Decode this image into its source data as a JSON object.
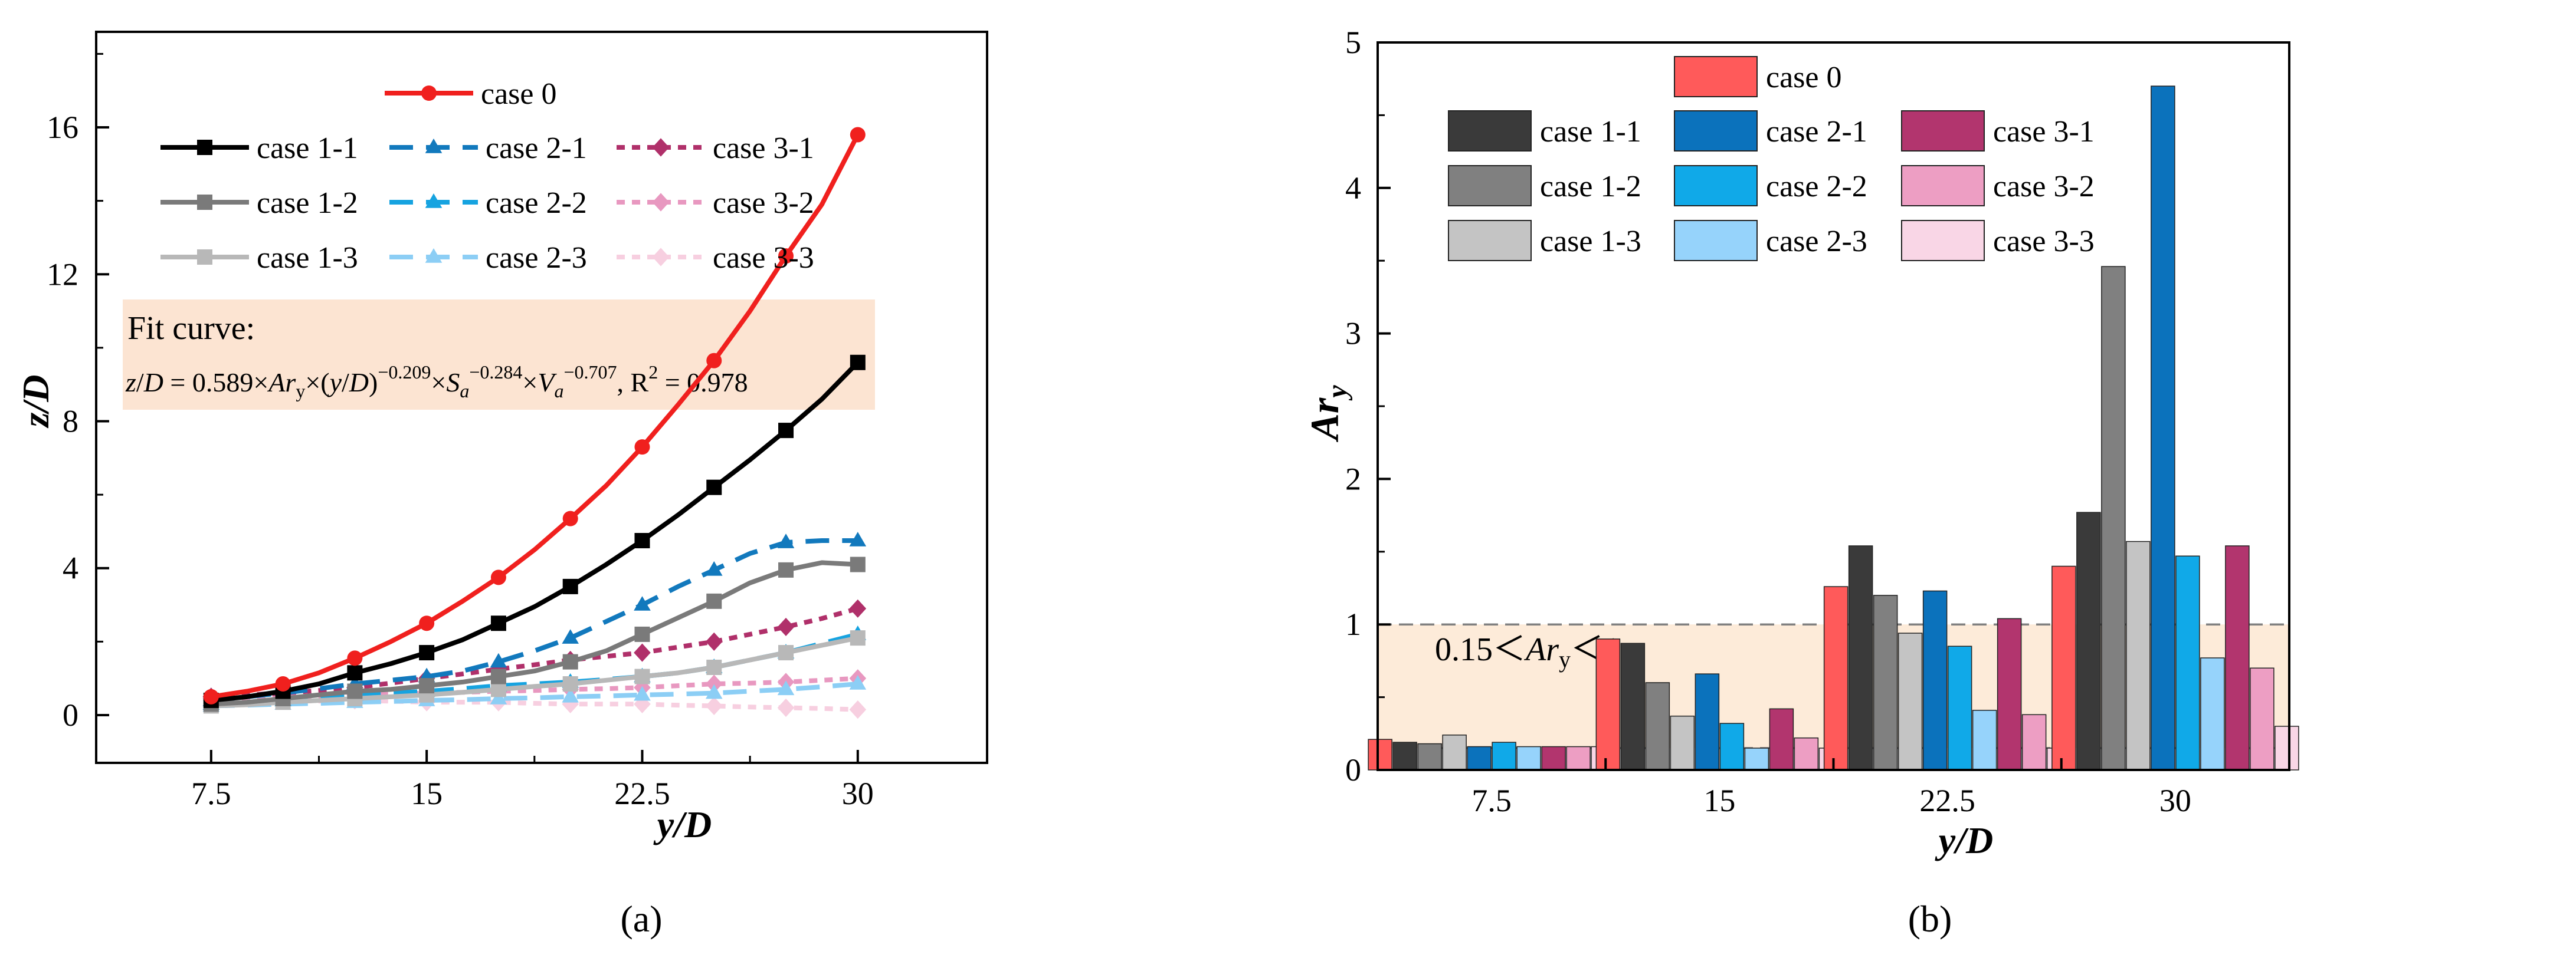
{
  "figure": {
    "panels": [
      "(a)",
      "(b)"
    ]
  },
  "chart_data": [
    {
      "type": "line",
      "panel_label": "(a)",
      "xlabel": "y/D",
      "ylabel": "z/D",
      "xlim": [
        3.5,
        34.5
      ],
      "ylim": [
        -1.3,
        18.6
      ],
      "xticks": [
        7.5,
        15,
        22.5,
        30
      ],
      "xtick_labels": [
        "7.5",
        "15",
        "22.5",
        "30"
      ],
      "yticks": [
        0,
        4,
        8,
        12,
        16
      ],
      "ytick_labels": [
        "0",
        "4",
        "8",
        "12",
        "16"
      ],
      "grid": false,
      "legend_position": "top",
      "annotation": {
        "title": "Fit curve:",
        "formula": "z/D = 0.589×Ary×(y/D)−0.209×Sa−0.284×Va−0.707, R2 = 0.978",
        "background": "#fce4d2"
      },
      "series": [
        {
          "name": "case 0",
          "color": "#f0201e",
          "dash": "solid",
          "marker": "circle",
          "marker_x": [
            7.5,
            10,
            12.5,
            15,
            17.5,
            20,
            22.5,
            25,
            27.5,
            30
          ],
          "marker_y": [
            0.5,
            0.85,
            1.55,
            2.5,
            3.75,
            5.35,
            7.3,
            9.65,
            12.5,
            15.8
          ],
          "x": [
            7.5,
            8.75,
            10,
            11.25,
            12.5,
            13.75,
            15,
            16.25,
            17.5,
            18.75,
            20,
            21.25,
            22.5,
            23.75,
            25,
            26.25,
            27.5,
            28.75,
            30
          ],
          "y": [
            0.5,
            0.65,
            0.85,
            1.15,
            1.55,
            2.0,
            2.5,
            3.1,
            3.75,
            4.5,
            5.35,
            6.25,
            7.3,
            8.45,
            9.65,
            11.0,
            12.5,
            13.9,
            15.8
          ]
        },
        {
          "name": "case 1-1",
          "color": "#000000",
          "dash": "solid",
          "marker": "square",
          "marker_x": [
            7.5,
            10,
            12.5,
            15,
            17.5,
            20,
            22.5,
            25,
            27.5,
            30
          ],
          "marker_y": [
            0.4,
            0.65,
            1.15,
            1.7,
            2.5,
            3.5,
            4.75,
            6.2,
            7.75,
            9.6
          ],
          "x": [
            7.5,
            8.75,
            10,
            11.25,
            12.5,
            13.75,
            15,
            16.25,
            17.5,
            18.75,
            20,
            21.25,
            22.5,
            23.75,
            25,
            26.25,
            27.5,
            28.75,
            30
          ],
          "y": [
            0.4,
            0.5,
            0.65,
            0.85,
            1.15,
            1.4,
            1.7,
            2.05,
            2.5,
            2.95,
            3.5,
            4.1,
            4.75,
            5.45,
            6.2,
            6.95,
            7.75,
            8.6,
            9.6
          ]
        },
        {
          "name": "case 1-2",
          "color": "#7a7a7a",
          "dash": "solid",
          "marker": "square",
          "marker_x": [
            7.5,
            10,
            12.5,
            15,
            17.5,
            20,
            22.5,
            25,
            27.5,
            30
          ],
          "marker_y": [
            0.3,
            0.45,
            0.65,
            0.8,
            1.05,
            1.45,
            2.2,
            3.1,
            3.95,
            4.1
          ],
          "x": [
            7.5,
            8.75,
            10,
            11.25,
            12.5,
            13.75,
            15,
            16.25,
            17.5,
            18.75,
            20,
            21.25,
            22.5,
            23.75,
            25,
            26.25,
            27.5,
            28.75,
            30
          ],
          "y": [
            0.3,
            0.35,
            0.45,
            0.55,
            0.65,
            0.7,
            0.8,
            0.9,
            1.05,
            1.2,
            1.45,
            1.75,
            2.2,
            2.65,
            3.1,
            3.6,
            3.95,
            4.15,
            4.1
          ]
        },
        {
          "name": "case 1-3",
          "color": "#b8b8b8",
          "dash": "solid",
          "marker": "square",
          "marker_x": [
            7.5,
            10,
            12.5,
            15,
            17.5,
            20,
            22.5,
            25,
            27.5,
            30
          ],
          "marker_y": [
            0.25,
            0.35,
            0.45,
            0.55,
            0.7,
            0.85,
            1.05,
            1.3,
            1.7,
            2.1
          ],
          "x": [
            7.5,
            8.75,
            10,
            11.25,
            12.5,
            13.75,
            15,
            16.25,
            17.5,
            18.75,
            20,
            21.25,
            22.5,
            23.75,
            25,
            26.25,
            27.5,
            28.75,
            30
          ],
          "y": [
            0.25,
            0.28,
            0.35,
            0.4,
            0.45,
            0.5,
            0.55,
            0.62,
            0.7,
            0.78,
            0.85,
            0.95,
            1.05,
            1.15,
            1.3,
            1.5,
            1.7,
            1.9,
            2.1
          ]
        },
        {
          "name": "case 2-1",
          "color": "#1279bd",
          "dash": "dash",
          "marker": "triangle",
          "marker_x": [
            7.5,
            10,
            12.5,
            15,
            17.5,
            20,
            22.5,
            25,
            27.5,
            30
          ],
          "marker_y": [
            0.4,
            0.6,
            0.85,
            1.05,
            1.45,
            2.1,
            3.0,
            3.95,
            4.7,
            4.75
          ],
          "x": [
            7.5,
            8.75,
            10,
            11.25,
            12.5,
            13.75,
            15,
            16.25,
            17.5,
            18.75,
            20,
            21.25,
            22.5,
            23.75,
            25,
            26.25,
            27.5,
            28.75,
            30
          ],
          "y": [
            0.4,
            0.5,
            0.6,
            0.72,
            0.85,
            0.95,
            1.05,
            1.2,
            1.45,
            1.75,
            2.1,
            2.55,
            3.0,
            3.5,
            3.95,
            4.4,
            4.7,
            4.75,
            4.75
          ]
        },
        {
          "name": "case 2-2",
          "color": "#16a3e0",
          "dash": "dash",
          "marker": "triangle",
          "marker_x": [
            7.5,
            10,
            12.5,
            15,
            17.5,
            20,
            22.5,
            25,
            27.5,
            30
          ],
          "marker_y": [
            0.3,
            0.4,
            0.55,
            0.65,
            0.8,
            0.9,
            1.05,
            1.3,
            1.7,
            2.2
          ],
          "x": [
            7.5,
            8.75,
            10,
            11.25,
            12.5,
            13.75,
            15,
            16.25,
            17.5,
            18.75,
            20,
            21.25,
            22.5,
            23.75,
            25,
            26.25,
            27.5,
            28.75,
            30
          ],
          "y": [
            0.3,
            0.35,
            0.4,
            0.48,
            0.55,
            0.6,
            0.65,
            0.72,
            0.8,
            0.85,
            0.9,
            0.97,
            1.05,
            1.15,
            1.3,
            1.5,
            1.7,
            1.95,
            2.2
          ]
        },
        {
          "name": "case 2-3",
          "color": "#8ccef5",
          "dash": "dash",
          "marker": "triangle",
          "marker_x": [
            7.5,
            10,
            12.5,
            15,
            17.5,
            20,
            22.5,
            25,
            27.5,
            30
          ],
          "marker_y": [
            0.25,
            0.3,
            0.35,
            0.4,
            0.45,
            0.5,
            0.55,
            0.6,
            0.7,
            0.85
          ],
          "x": [
            7.5,
            8.75,
            10,
            11.25,
            12.5,
            13.75,
            15,
            16.25,
            17.5,
            18.75,
            20,
            21.25,
            22.5,
            23.75,
            25,
            26.25,
            27.5,
            28.75,
            30
          ],
          "y": [
            0.25,
            0.27,
            0.3,
            0.32,
            0.35,
            0.37,
            0.4,
            0.42,
            0.45,
            0.47,
            0.5,
            0.52,
            0.55,
            0.57,
            0.6,
            0.65,
            0.7,
            0.77,
            0.85
          ]
        },
        {
          "name": "case 3-1",
          "color": "#b0306a",
          "dash": "dot",
          "marker": "diamond",
          "marker_x": [
            7.5,
            10,
            12.5,
            15,
            17.5,
            20,
            22.5,
            25,
            27.5,
            30
          ],
          "marker_y": [
            0.5,
            0.6,
            0.75,
            1.0,
            1.25,
            1.5,
            1.7,
            2.0,
            2.4,
            2.9
          ],
          "x": [
            7.5,
            8.75,
            10,
            11.25,
            12.5,
            13.75,
            15,
            16.25,
            17.5,
            18.75,
            20,
            21.25,
            22.5,
            23.75,
            25,
            26.25,
            27.5,
            28.75,
            30
          ],
          "y": [
            0.5,
            0.55,
            0.6,
            0.67,
            0.75,
            0.87,
            1.0,
            1.12,
            1.25,
            1.37,
            1.5,
            1.6,
            1.7,
            1.85,
            2.0,
            2.2,
            2.4,
            2.63,
            2.9
          ]
        },
        {
          "name": "case 3-2",
          "color": "#e898c0",
          "dash": "dot",
          "marker": "diamond",
          "marker_x": [
            7.5,
            10,
            12.5,
            15,
            17.5,
            20,
            22.5,
            25,
            27.5,
            30
          ],
          "marker_y": [
            0.45,
            0.5,
            0.55,
            0.6,
            0.65,
            0.7,
            0.75,
            0.85,
            0.9,
            1.0
          ],
          "x": [
            7.5,
            8.75,
            10,
            11.25,
            12.5,
            13.75,
            15,
            16.25,
            17.5,
            18.75,
            20,
            21.25,
            22.5,
            23.75,
            25,
            26.25,
            27.5,
            28.75,
            30
          ],
          "y": [
            0.45,
            0.47,
            0.5,
            0.52,
            0.55,
            0.57,
            0.6,
            0.62,
            0.65,
            0.67,
            0.7,
            0.72,
            0.75,
            0.8,
            0.85,
            0.87,
            0.9,
            0.95,
            1.0
          ]
        },
        {
          "name": "case 3-3",
          "color": "#f7cfe0",
          "dash": "dot",
          "marker": "diamond",
          "marker_x": [
            7.5,
            10,
            12.5,
            15,
            17.5,
            20,
            22.5,
            25,
            27.5,
            30
          ],
          "marker_y": [
            0.4,
            0.4,
            0.4,
            0.35,
            0.35,
            0.3,
            0.3,
            0.25,
            0.2,
            0.15
          ],
          "x": [
            7.5,
            8.75,
            10,
            11.25,
            12.5,
            13.75,
            15,
            16.25,
            17.5,
            18.75,
            20,
            21.25,
            22.5,
            23.75,
            25,
            26.25,
            27.5,
            28.75,
            30
          ],
          "y": [
            0.4,
            0.4,
            0.4,
            0.38,
            0.4,
            0.38,
            0.35,
            0.35,
            0.35,
            0.32,
            0.3,
            0.3,
            0.3,
            0.27,
            0.25,
            0.22,
            0.2,
            0.18,
            0.15
          ]
        }
      ]
    },
    {
      "type": "bar",
      "panel_label": "(b)",
      "xlabel": "y/D",
      "ylabel": "Ary",
      "categories": [
        "7.5",
        "15",
        "22.5",
        "30"
      ],
      "ylim": [
        0,
        5
      ],
      "yticks": [
        0,
        1,
        2,
        3,
        4,
        5
      ],
      "ytick_labels": [
        "0",
        "1",
        "2",
        "3",
        "4",
        "5"
      ],
      "grid": false,
      "legend_position": "top-left",
      "reference_band": {
        "low": 0.15,
        "high": 1,
        "label": "0.15＜Ary＜1",
        "color": "#fdebd9"
      },
      "series": [
        {
          "name": "case 0",
          "color": "#ff5a5a",
          "values": [
            0.21,
            0.9,
            1.26,
            1.4
          ]
        },
        {
          "name": "case 1-1",
          "color": "#3a3a3a",
          "values": [
            0.19,
            0.87,
            1.54,
            1.77
          ]
        },
        {
          "name": "case 1-2",
          "color": "#808080",
          "values": [
            0.18,
            0.6,
            1.2,
            3.46
          ]
        },
        {
          "name": "case 1-3",
          "color": "#c4c4c4",
          "values": [
            0.24,
            0.37,
            0.94,
            1.57
          ]
        },
        {
          "name": "case 2-1",
          "color": "#0b72bc",
          "values": [
            0.16,
            0.66,
            1.23,
            4.7
          ]
        },
        {
          "name": "case 2-2",
          "color": "#10a9e8",
          "values": [
            0.19,
            0.32,
            0.85,
            1.47
          ]
        },
        {
          "name": "case 2-3",
          "color": "#96d3fb",
          "values": [
            0.16,
            0.15,
            0.41,
            0.77
          ]
        },
        {
          "name": "case 3-1",
          "color": "#b2356e",
          "values": [
            0.16,
            0.42,
            1.04,
            1.54
          ]
        },
        {
          "name": "case 3-2",
          "color": "#ed9ec3",
          "values": [
            0.16,
            0.22,
            0.38,
            0.7
          ]
        },
        {
          "name": "case 3-3",
          "color": "#f9d6e6",
          "values": [
            0.16,
            0.15,
            0.15,
            0.3
          ]
        }
      ]
    }
  ]
}
